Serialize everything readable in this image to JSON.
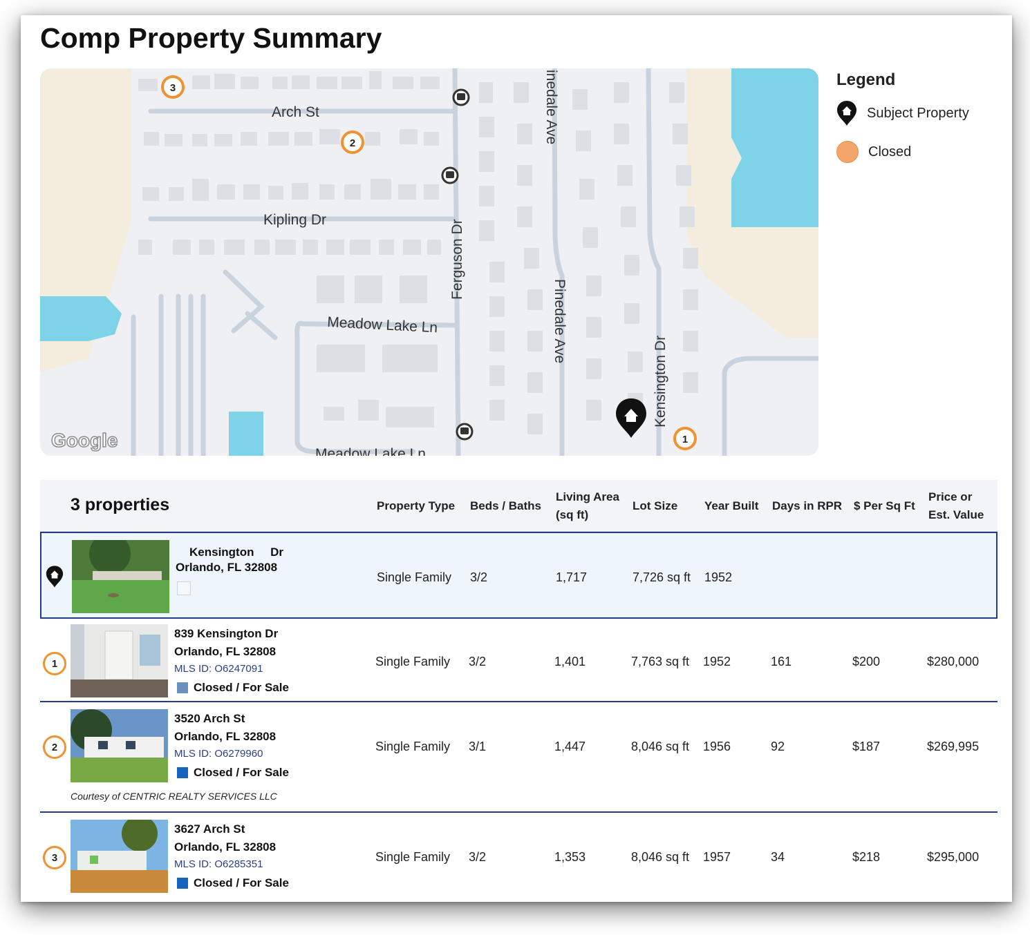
{
  "page": {
    "title": "Comp Property Summary"
  },
  "map": {
    "streets": {
      "arch": "Arch St",
      "kipling": "Kipling Dr",
      "meadow1": "Meadow Lake Ln",
      "meadow2": "Meadow Lake Ln",
      "ferguson": "Ferguson Dr",
      "pinedale_top": "inedale Ave",
      "pinedale": "Pinedale Ave",
      "kensington": "Kensington Dr"
    },
    "attribution": "Google",
    "markers": [
      "1",
      "2",
      "3"
    ]
  },
  "legend": {
    "title": "Legend",
    "items": [
      {
        "label": "Subject Property",
        "icon": "subject-pin-icon"
      },
      {
        "label": "Closed",
        "icon": "orange-dot",
        "color": "#f2a66a"
      }
    ]
  },
  "table": {
    "count_label": "3 properties",
    "headers": {
      "type": "Property Type",
      "beds": "Beds / Baths",
      "area1": "Living Area",
      "area2": "(sq ft)",
      "lot": "Lot Size",
      "year": "Year Built",
      "days": "Days in RPR",
      "ppsf": "$ Per Sq Ft",
      "price1": "Price or",
      "price2": "Est. Value"
    },
    "subject": {
      "street": "Kensington",
      "street_suffix": "Dr",
      "city": "Orlando, FL 32808",
      "type": "Single Family",
      "beds": "3/2",
      "area": "1,717",
      "lot": "7,726 sq ft",
      "year": "1952"
    },
    "rows": [
      {
        "marker": "1",
        "address": "839 Kensington Dr",
        "city": "Orlando, FL 32808",
        "mls": "MLS ID: O6247091",
        "status": "Closed / For Sale",
        "status_color": "#6b8fbf",
        "type": "Single Family",
        "beds": "3/2",
        "area": "1,401",
        "lot": "7,763 sq ft",
        "year": "1952",
        "days": "161",
        "ppsf": "$200",
        "price": "$280,000"
      },
      {
        "marker": "2",
        "address": "3520 Arch St",
        "city": "Orlando, FL 32808",
        "mls": "MLS ID: O6279960",
        "status": "Closed / For Sale",
        "status_color": "#1565c0",
        "type": "Single Family",
        "beds": "3/1",
        "area": "1,447",
        "lot": "8,046 sq ft",
        "year": "1956",
        "days": "92",
        "ppsf": "$187",
        "price": "$269,995",
        "courtesy": "Courtesy of CENTRIC REALTY SERVICES LLC"
      },
      {
        "marker": "3",
        "address": "3627 Arch St",
        "city": "Orlando, FL 32808",
        "mls": "MLS ID: O6285351",
        "status": "Closed / For Sale",
        "status_color": "#1565c0",
        "type": "Single Family",
        "beds": "3/2",
        "area": "1,353",
        "lot": "8,046 sq ft",
        "year": "1957",
        "days": "34",
        "ppsf": "$218",
        "price": "$295,000"
      }
    ]
  }
}
